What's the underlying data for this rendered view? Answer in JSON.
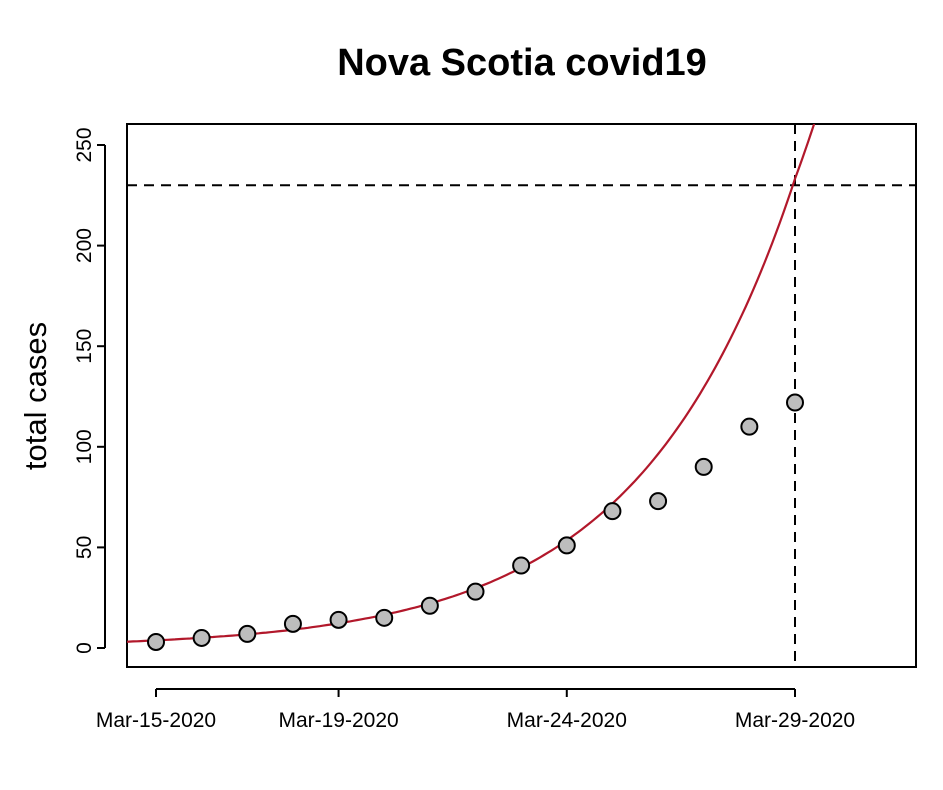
{
  "chart_data": {
    "type": "scatter",
    "title": "Nova Scotia covid19",
    "xlabel": "",
    "ylabel": "total cases",
    "x_ticks": [
      "Mar-15-2020",
      "Mar-19-2020",
      "Mar-24-2020",
      "Mar-29-2020"
    ],
    "y_ticks": [
      0,
      50,
      100,
      150,
      200,
      250
    ],
    "ylim": [
      -5,
      260
    ],
    "xlim": [
      "Mar-14-2020",
      "Apr-01-2020"
    ],
    "grid": false,
    "series": [
      {
        "kind": "points",
        "x": [
          "Mar-15-2020",
          "Mar-16-2020",
          "Mar-17-2020",
          "Mar-18-2020",
          "Mar-19-2020",
          "Mar-20-2020",
          "Mar-21-2020",
          "Mar-22-2020",
          "Mar-23-2020",
          "Mar-24-2020",
          "Mar-25-2020",
          "Mar-26-2020",
          "Mar-27-2020",
          "Mar-28-2020",
          "Mar-29-2020"
        ],
        "y": [
          3,
          5,
          7,
          12,
          14,
          15,
          21,
          28,
          41,
          51,
          68,
          73,
          90,
          110,
          122
        ],
        "color": "#bdbdbd"
      },
      {
        "kind": "fit-curve",
        "model": "exponential",
        "x": [
          "Mar-14-2020",
          "Mar-15-2020",
          "Mar-16-2020",
          "Mar-17-2020",
          "Mar-18-2020",
          "Mar-19-2020",
          "Mar-20-2020",
          "Mar-21-2020",
          "Mar-22-2020",
          "Mar-23-2020",
          "Mar-24-2020",
          "Mar-25-2020",
          "Mar-26-2020",
          "Mar-27-2020",
          "Mar-28-2020",
          "Mar-29-2020",
          "Mar-29-2020 12:00"
        ],
        "y": [
          2.8,
          3.8,
          5.1,
          6.8,
          9.1,
          12.3,
          16.5,
          22.1,
          29.7,
          39.9,
          53.5,
          71.8,
          96.4,
          129.4,
          173.7,
          233.2,
          266.1
        ],
        "color": "#b2182b"
      }
    ],
    "reference_lines": [
      {
        "orientation": "horizontal",
        "value": 230,
        "style": "dashed"
      },
      {
        "orientation": "vertical",
        "value": "Mar-29-2020",
        "style": "dashed"
      }
    ]
  }
}
